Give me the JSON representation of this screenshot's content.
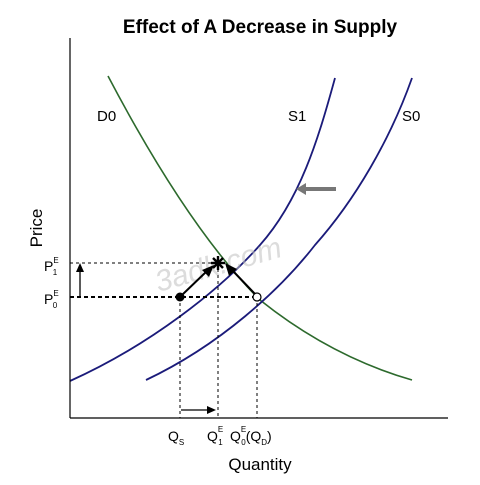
{
  "chart_data": {
    "type": "line",
    "title": "Effect of A Decrease in Supply",
    "xlabel": "Quantity",
    "ylabel": "Price",
    "grid": false,
    "legend": "none",
    "colors": {
      "demand": "#2d6a2d",
      "supply": "#1b1b7a",
      "axes": "#000000",
      "shift_arrow": "#777777",
      "watermark": "#bfbfbf"
    },
    "curve_labels": {
      "demand": "D0",
      "supply_new": "S1",
      "supply_old": "S0"
    },
    "price_ticks": [
      {
        "key": "p1",
        "main": "P",
        "sup": "E",
        "sub": "1"
      },
      {
        "key": "p0",
        "main": "P",
        "sup": "E",
        "sub": "0"
      }
    ],
    "quantity_ticks": [
      {
        "key": "qs",
        "main": "Q",
        "sub": "S"
      },
      {
        "key": "q1",
        "main": "Q",
        "sup": "E",
        "sub": "1"
      },
      {
        "key": "q0",
        "main": "Q",
        "sup": "E",
        "sub": "0",
        "paren_main": "Q",
        "paren_sub": "D"
      }
    ],
    "watermark": "3adk.com"
  }
}
